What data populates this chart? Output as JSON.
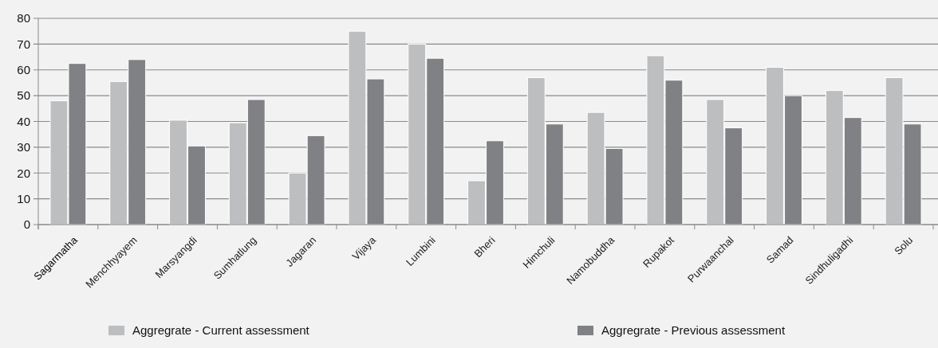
{
  "chart_data": {
    "type": "bar",
    "categories": [
      "Sagarmatha",
      "Menchhyayem",
      "Marsyangdi",
      "Sumhatlung",
      "Jagaran",
      "Vijaya",
      "Lumbini",
      "Bheri",
      "Himchuli",
      "Namobuddha",
      "Rupakot",
      "Purwaanchal",
      "Samad",
      "Sindhuligadhi",
      "Solu"
    ],
    "series": [
      {
        "name": "Aggregrate - Current assessment",
        "color": "#bdbec0",
        "values": [
          48,
          55.5,
          40.5,
          39.5,
          20,
          75,
          70,
          17,
          57,
          43.5,
          65.5,
          48.5,
          61,
          52,
          57
        ]
      },
      {
        "name": "Aggregrate - Previous  assessment",
        "color": "#808184",
        "values": [
          62.5,
          64,
          30.5,
          48.5,
          34.5,
          56.5,
          64.5,
          32.5,
          39,
          29.5,
          56,
          37.5,
          50,
          41.5,
          39
        ]
      }
    ],
    "ylim": [
      0,
      80
    ],
    "yticks": [
      0,
      10,
      20,
      30,
      40,
      50,
      60,
      70,
      80
    ],
    "grid": "y",
    "legend": "bottom"
  }
}
